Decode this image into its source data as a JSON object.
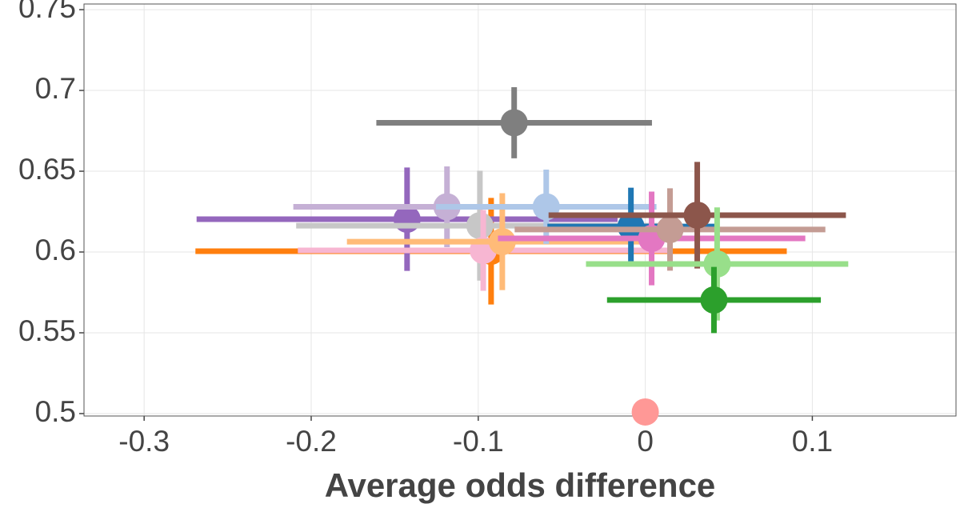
{
  "chart_data": {
    "type": "errorbar-scatter",
    "xlabel": "Average odds difference",
    "xlim": [
      -0.336,
      0.186
    ],
    "ylim": [
      0.4985,
      0.7535
    ],
    "xticks": [
      -0.3,
      -0.2,
      -0.1,
      0,
      0.1
    ],
    "yticks": [
      0.5,
      0.55,
      0.6,
      0.65,
      0.7,
      0.75
    ],
    "grid": true,
    "points": [
      {
        "color": "#ff7f0e",
        "x": -0.0923,
        "y": 0.6005,
        "xerr": 0.177,
        "yerr": 0.033
      },
      {
        "color": "#9467bd",
        "x": -0.1426,
        "y": 0.6203,
        "xerr": 0.126,
        "yerr": 0.032
      },
      {
        "color": "#c5b0d5",
        "x": -0.1187,
        "y": 0.628,
        "xerr": 0.092,
        "yerr": 0.025
      },
      {
        "color": "#c7c7c7",
        "x": -0.099,
        "y": 0.6163,
        "xerr": 0.11,
        "yerr": 0.034
      },
      {
        "color": "#f7b6d2",
        "x": -0.097,
        "y": 0.601,
        "xerr": 0.111,
        "yerr": 0.025
      },
      {
        "color": "#ffbb78",
        "x": -0.0856,
        "y": 0.6064,
        "xerr": 0.093,
        "yerr": 0.03
      },
      {
        "color": "#aec7e8",
        "x": -0.0593,
        "y": 0.628,
        "xerr": 0.066,
        "yerr": 0.023
      },
      {
        "color": "#1f77b4",
        "x": -0.0086,
        "y": 0.6158,
        "xerr": 0.05,
        "yerr": 0.024
      },
      {
        "color": "#e377c2",
        "x": 0.0038,
        "y": 0.6084,
        "xerr": 0.092,
        "yerr": 0.029
      },
      {
        "color": "#c49c94",
        "x": 0.0148,
        "y": 0.6139,
        "xerr": 0.093,
        "yerr": 0.0255
      },
      {
        "color": "#8c564b",
        "x": 0.0311,
        "y": 0.6228,
        "xerr": 0.089,
        "yerr": 0.033
      },
      {
        "color": "#98df8a",
        "x": 0.043,
        "y": 0.5926,
        "xerr": 0.0785,
        "yerr": 0.035
      },
      {
        "color": "#2ca02c",
        "x": 0.0411,
        "y": 0.5703,
        "xerr": 0.064,
        "yerr": 0.0205
      },
      {
        "color": "#7f7f7f",
        "x": -0.0785,
        "y": 0.68,
        "xerr": 0.0825,
        "yerr": 0.022
      },
      {
        "color": "#ff9896",
        "x": 0,
        "y": 0.501,
        "xerr": 0,
        "yerr": 0
      }
    ]
  }
}
